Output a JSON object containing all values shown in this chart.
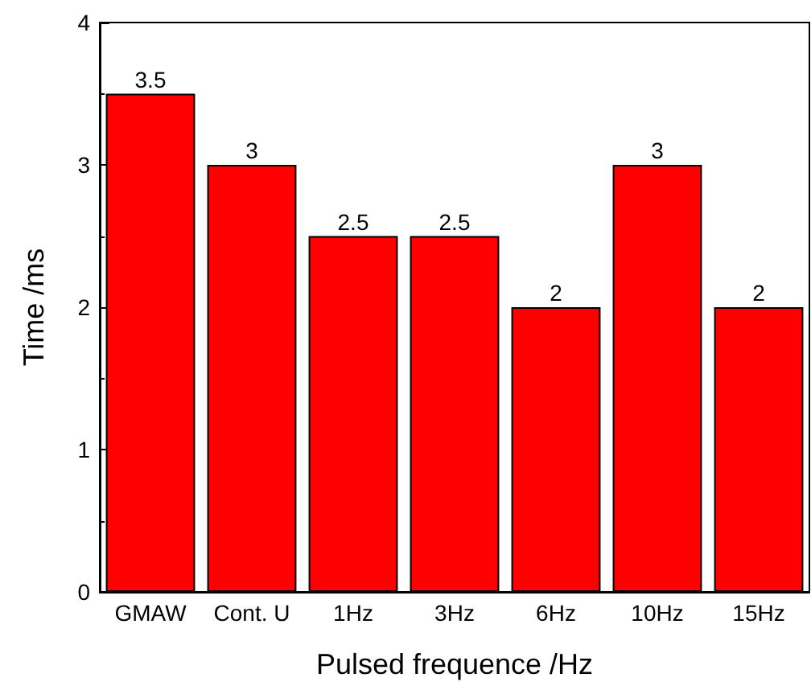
{
  "chart_data": {
    "type": "bar",
    "xlabel": "Pulsed frequence /Hz",
    "ylabel": "Time /ms",
    "categories": [
      "GMAW",
      "Cont. U",
      "1Hz",
      "3Hz",
      "6Hz",
      "10Hz",
      "15Hz"
    ],
    "values": [
      3.5,
      3,
      2.5,
      2.5,
      2,
      3,
      2
    ],
    "color": "#ff0000",
    "ylim": [
      0,
      4
    ],
    "yticks": [
      0,
      1,
      2,
      3,
      4
    ],
    "grid": false,
    "data_labels": true
  }
}
